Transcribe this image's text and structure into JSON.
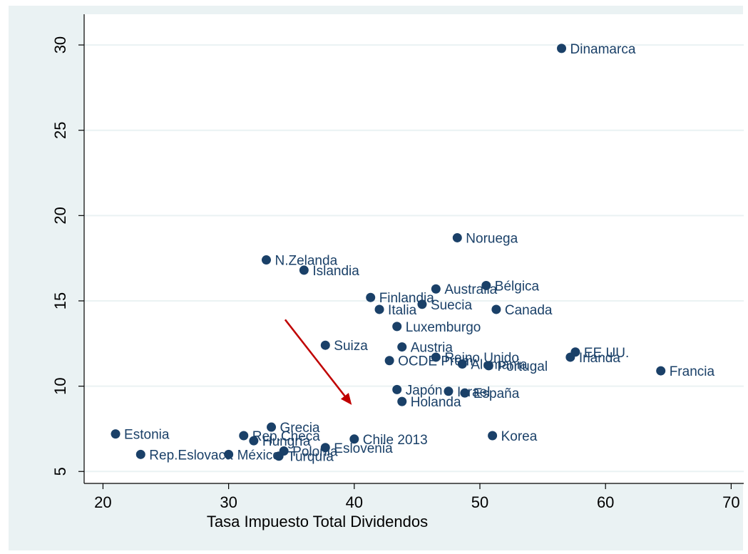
{
  "chart_data": {
    "type": "scatter",
    "title": "",
    "xlabel": "Tasa Impuesto Total Dividendos",
    "ylabel": "",
    "xlim": [
      18.5,
      71
    ],
    "ylim": [
      4.3,
      31.8
    ],
    "xticks": [
      20,
      30,
      40,
      50,
      60,
      70
    ],
    "yticks": [
      5,
      10,
      15,
      20,
      25,
      30
    ],
    "grid": "horizontal",
    "legend": "none",
    "points": [
      {
        "label": "Dinamarca",
        "x": 56.5,
        "y": 29.8
      },
      {
        "label": "Noruega",
        "x": 48.2,
        "y": 18.7
      },
      {
        "label": "N.Zelanda",
        "x": 33.0,
        "y": 17.4
      },
      {
        "label": "Islandia",
        "x": 36.0,
        "y": 16.8
      },
      {
        "label": "Australia",
        "x": 46.5,
        "y": 15.7
      },
      {
        "label": "Bélgica",
        "x": 50.5,
        "y": 15.9
      },
      {
        "label": "Finlandia",
        "x": 41.3,
        "y": 15.2
      },
      {
        "label": "Suecia",
        "x": 45.4,
        "y": 14.8
      },
      {
        "label": "Italia",
        "x": 42.0,
        "y": 14.5
      },
      {
        "label": "Canada",
        "x": 51.3,
        "y": 14.5
      },
      {
        "label": "Luxemburgo",
        "x": 43.4,
        "y": 13.5
      },
      {
        "label": "Suiza",
        "x": 37.7,
        "y": 12.4
      },
      {
        "label": "Austria",
        "x": 43.8,
        "y": 12.3
      },
      {
        "label": "EE.UU.",
        "x": 57.6,
        "y": 12.0
      },
      {
        "label": "Irlanda",
        "x": 57.2,
        "y": 11.7
      },
      {
        "label": "OCDE Prom",
        "x": 42.8,
        "y": 11.5
      },
      {
        "label": "Reino Unido",
        "x": 46.5,
        "y": 11.7
      },
      {
        "label": "Alemania",
        "x": 48.6,
        "y": 11.3
      },
      {
        "label": "Portugal",
        "x": 50.7,
        "y": 11.2
      },
      {
        "label": "Francia",
        "x": 64.4,
        "y": 10.9
      },
      {
        "label": "Japón",
        "x": 43.4,
        "y": 9.8
      },
      {
        "label": "Israel",
        "x": 47.5,
        "y": 9.7
      },
      {
        "label": "España",
        "x": 48.8,
        "y": 9.6
      },
      {
        "label": "Holanda",
        "x": 43.8,
        "y": 9.1
      },
      {
        "label": "Grecia",
        "x": 33.4,
        "y": 7.6
      },
      {
        "label": "Estonia",
        "x": 21.0,
        "y": 7.2
      },
      {
        "label": "Rep.Checa",
        "x": 31.2,
        "y": 7.1
      },
      {
        "label": "Korea",
        "x": 51.0,
        "y": 7.1
      },
      {
        "label": "Chile 2013",
        "x": 40.0,
        "y": 6.9
      },
      {
        "label": "Hungría",
        "x": 32.0,
        "y": 6.8
      },
      {
        "label": "Eslovenia",
        "x": 37.7,
        "y": 6.4
      },
      {
        "label": "Polonia",
        "x": 34.4,
        "y": 6.2
      },
      {
        "label": "Rep.Eslovaca",
        "x": 23.0,
        "y": 6.0
      },
      {
        "label": "México",
        "x": 30.0,
        "y": 6.0
      },
      {
        "label": "Turquía",
        "x": 34.0,
        "y": 5.9
      }
    ],
    "arrow": {
      "from": [
        34.5,
        13.9
      ],
      "to": [
        39.8,
        8.9
      ],
      "color": "#c00000"
    },
    "colors": {
      "marker": "#1a4068",
      "label": "#1a4068",
      "outer_bg": "#eaf2f3",
      "plot_bg": "#ffffff",
      "grid": "#eaf2f3",
      "arrow": "#c00000"
    }
  }
}
